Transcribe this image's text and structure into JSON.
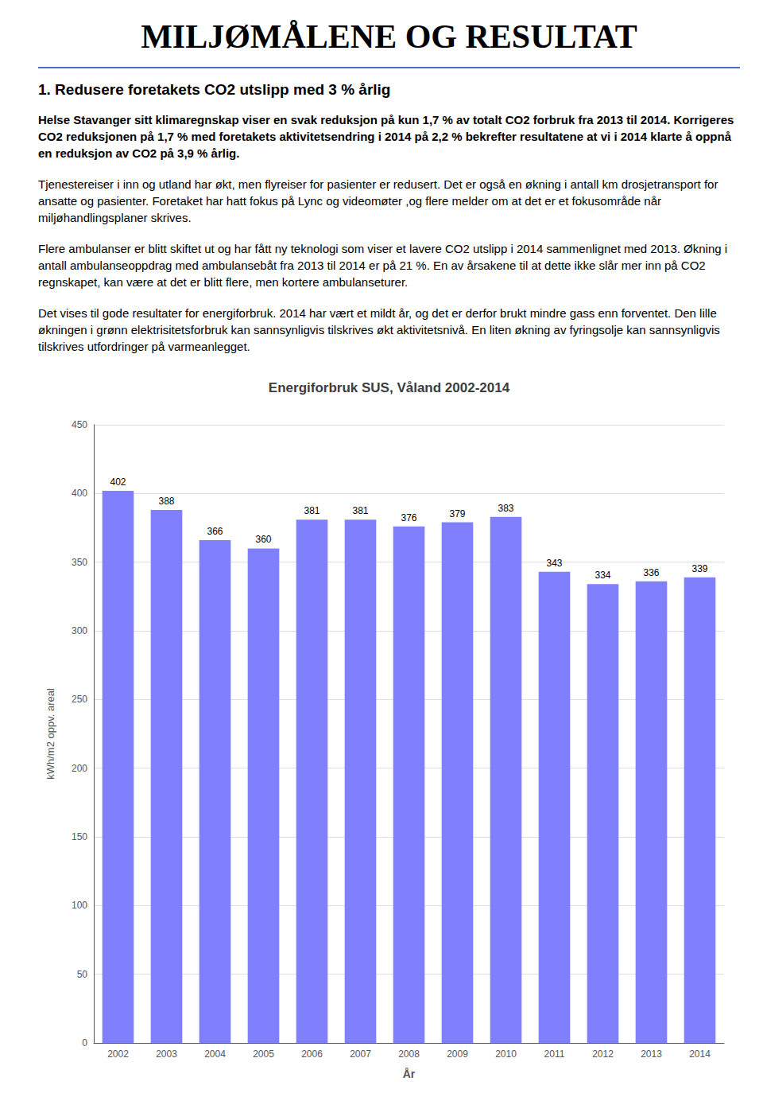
{
  "page_title": "MILJØMÅLENE OG RESULTAT",
  "section_heading": "1.  Redusere foretakets CO2 utslipp med 3 % årlig",
  "bold_text": "Helse Stavanger sitt klimaregnskap viser en svak reduksjon på kun 1,7 % av totalt CO2 forbruk fra 2013 til 2014. Korrigeres CO2 reduksjonen på 1,7 % med foretakets aktivitetsendring i 2014 på 2,2 % bekrefter resultatene at vi i 2014 klarte å oppnå en reduksjon av CO2 på 3,9 % årlig.",
  "body_paragraphs": [
    "Tjenestereiser i inn og utland har økt, men flyreiser for pasienter er redusert. Det er også en økning i antall km drosjetransport for ansatte og pasienter. Foretaket har hatt fokus på Lync og videomøter ,og flere melder om at det er et fokusområde når miljøhandlingsplaner skrives.",
    "Flere ambulanser er blitt skiftet ut og har fått ny teknologi som viser et lavere CO2 utslipp i 2014 sammenlignet med 2013. Økning i antall ambulanseoppdrag med ambulansebåt fra 2013 til 2014 er på 21 %. En av årsakene til at dette ikke slår mer inn på CO2 regnskapet, kan være at det er blitt flere, men kortere ambulanseturer.",
    "Det vises til gode resultater for energiforbruk. 2014 har vært et mildt år, og det er derfor brukt mindre gass enn forventet. Den lille økningen i grønn elektrisitetsforbruk kan sannsynligvis tilskrives økt aktivitetsnivå. En liten økning av fyringsolje kan sannsynligvis tilskrives utfordringer på varmeanlegget."
  ],
  "chart_data": {
    "type": "bar",
    "title": "Energiforbruk SUS, Våland 2002-2014",
    "categories": [
      "2002",
      "2003",
      "2004",
      "2005",
      "2006",
      "2007",
      "2008",
      "2009",
      "2010",
      "2011",
      "2012",
      "2013",
      "2014"
    ],
    "values": [
      402,
      388,
      366,
      360,
      381,
      381,
      376,
      379,
      383,
      343,
      334,
      336,
      339
    ],
    "color": "#8080FF",
    "xlabel": "År",
    "ylabel": "kWh/m2 oppv. areal",
    "ylim": [
      0,
      450
    ],
    "yticks": [
      0,
      50,
      100,
      150,
      200,
      250,
      300,
      350,
      400,
      450
    ],
    "grid": true,
    "data_labels": true
  }
}
